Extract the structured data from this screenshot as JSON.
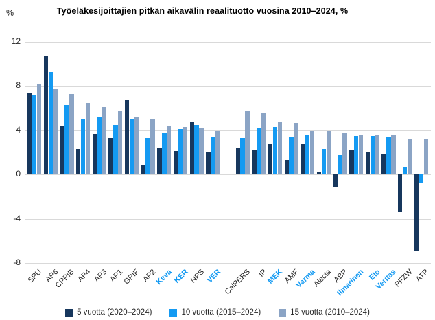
{
  "title": "Työeläkesijoittajien pitkän aikavälin reaalituotto vuosina 2010–2024, %",
  "y_axis": {
    "unit_label": "%",
    "ticks": [
      12,
      8,
      4,
      0,
      -4,
      -8
    ]
  },
  "colors": {
    "series_5y": "#17375d",
    "series_10y": "#149af2",
    "series_15y": "#8ba4c5",
    "highlight_label": "#149af2",
    "gridline": "#d9d9d9",
    "text": "#262626"
  },
  "chart_data": {
    "type": "bar",
    "title": "Työeläkesijoittajien pitkän aikavälin reaalituotto vuosina 2010–2024, %",
    "xlabel": "",
    "ylabel": "%",
    "ylim": [
      -8,
      12
    ],
    "grid": true,
    "legend_position": "bottom",
    "categories": [
      "SPU",
      "AP6",
      "CPPIB",
      "AP4",
      "AP3",
      "AP1",
      "GPIF",
      "AP2",
      "Keva",
      "KER",
      "NPS",
      "VER",
      "CalPERS",
      "IP",
      "MEK",
      "AMF",
      "Varma",
      "Alecta",
      "ABP",
      "Ilmarinen",
      "Elo",
      "Veritas",
      "PFZW",
      "ATP"
    ],
    "highlighted_categories": [
      "Keva",
      "KER",
      "VER",
      "MEK",
      "Varma",
      "Ilmarinen",
      "Elo",
      "Veritas"
    ],
    "gap_after": "VER",
    "series": [
      {
        "name": "5 vuotta (2020–2024)",
        "color": "#17375d",
        "values": [
          7.4,
          10.7,
          4.4,
          2.3,
          3.7,
          3.3,
          6.7,
          0.8,
          2.4,
          2.1,
          4.8,
          2.0,
          2.4,
          2.2,
          2.8,
          1.3,
          2.8,
          0.2,
          -1.1,
          2.2,
          2.0,
          1.9,
          -3.4,
          -6.9
        ]
      },
      {
        "name": "10 vuotta (2015–2024)",
        "color": "#149af2",
        "values": [
          7.2,
          9.3,
          6.3,
          5.0,
          5.2,
          4.5,
          5.0,
          3.3,
          3.8,
          4.1,
          4.5,
          3.4,
          3.3,
          4.2,
          4.3,
          3.4,
          3.6,
          2.3,
          1.8,
          3.5,
          3.5,
          3.4,
          0.7,
          -0.7
        ]
      },
      {
        "name": "15 vuotta (2010–2024)",
        "color": "#8ba4c5",
        "values": [
          8.2,
          7.7,
          7.3,
          6.5,
          6.1,
          5.7,
          5.2,
          5.0,
          4.4,
          4.3,
          4.2,
          3.9,
          5.8,
          5.6,
          4.8,
          4.7,
          3.9,
          3.9,
          3.8,
          3.6,
          3.6,
          3.6,
          3.2,
          3.2
        ]
      }
    ]
  }
}
